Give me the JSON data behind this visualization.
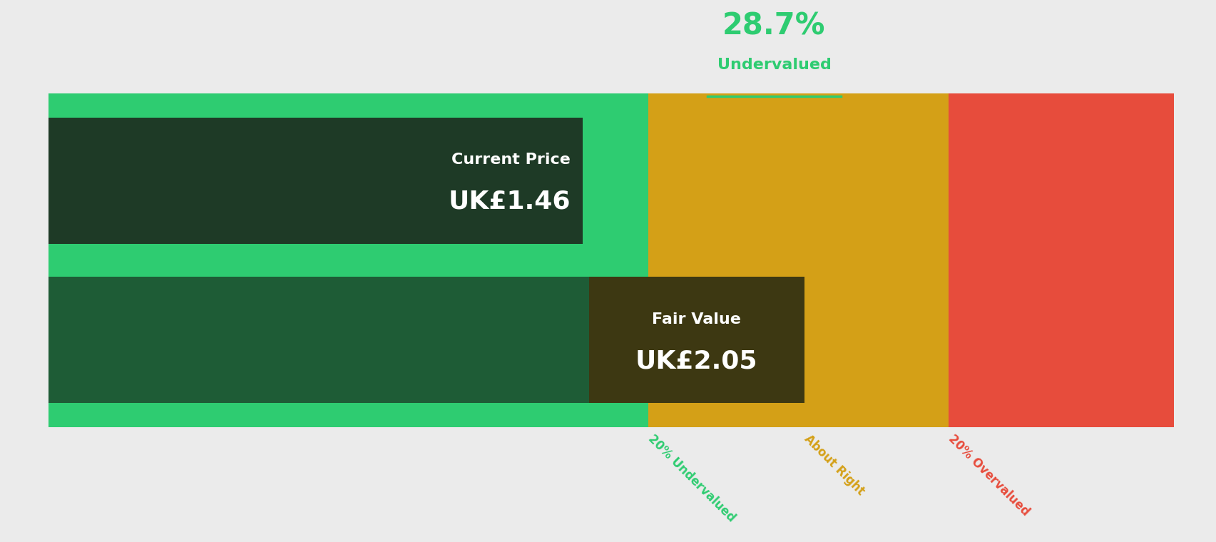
{
  "background_color": "#ebebeb",
  "title_percentage": "28.7%",
  "title_label": "Undervalued",
  "title_color": "#2ecc71",
  "current_price_label": "Current Price",
  "current_price_value": "UK£1.46",
  "fair_value_label": "Fair Value",
  "fair_value_value": "UK£2.05",
  "current_price": 1.46,
  "fair_value": 2.05,
  "color_green_light": "#2ecc71",
  "color_green_dark": "#1e5c36",
  "color_yellow": "#d4a017",
  "color_red": "#e74c3c",
  "color_dark_box_current": "#1e3a26",
  "color_dark_box_fair": "#3d3812",
  "label_undervalued": "20% Undervalued",
  "label_about_right": "About Right",
  "label_overvalued": "20% Overvalued",
  "label_color_undervalued": "#2ecc71",
  "label_color_about_right": "#d4a017",
  "label_color_overvalued": "#e74c3c"
}
